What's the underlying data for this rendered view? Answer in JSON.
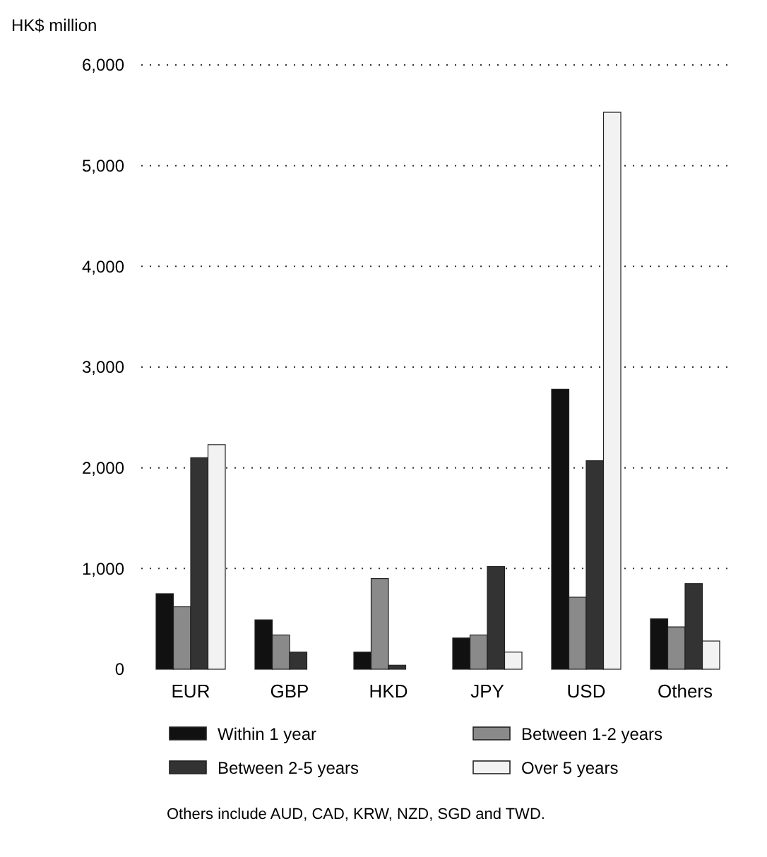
{
  "chart_data": {
    "type": "bar",
    "ylabel": "HK$ million",
    "categories": [
      "EUR",
      "GBP",
      "HKD",
      "JPY",
      "USD",
      "Others"
    ],
    "series": [
      {
        "name": "Within 1 year",
        "color": "#111111",
        "values": [
          750,
          490,
          170,
          310,
          2780,
          500
        ]
      },
      {
        "name": "Between 1-2 years",
        "color": "#8a8a8a",
        "values": [
          620,
          340,
          900,
          340,
          715,
          420
        ]
      },
      {
        "name": "Between 2-5 years",
        "color": "#333333",
        "values": [
          2100,
          170,
          40,
          1020,
          2070,
          850
        ]
      },
      {
        "name": "Over 5 years",
        "color": "#f2f2f2",
        "values": [
          2230,
          0,
          0,
          170,
          5530,
          280
        ]
      }
    ],
    "ylim": [
      0,
      6000
    ],
    "yticks": [
      {
        "value": 0,
        "label": "0"
      },
      {
        "value": 1000,
        "label": "1,000"
      },
      {
        "value": 2000,
        "label": "2,000"
      },
      {
        "value": 3000,
        "label": "3,000"
      },
      {
        "value": 4000,
        "label": "4,000"
      },
      {
        "value": 5000,
        "label": "5,000"
      },
      {
        "value": 6000,
        "label": "6,000"
      }
    ],
    "grid": "y",
    "legend": "bottom",
    "annotations": [
      "Others include AUD, CAD, KRW, NZD, SGD and TWD."
    ]
  }
}
